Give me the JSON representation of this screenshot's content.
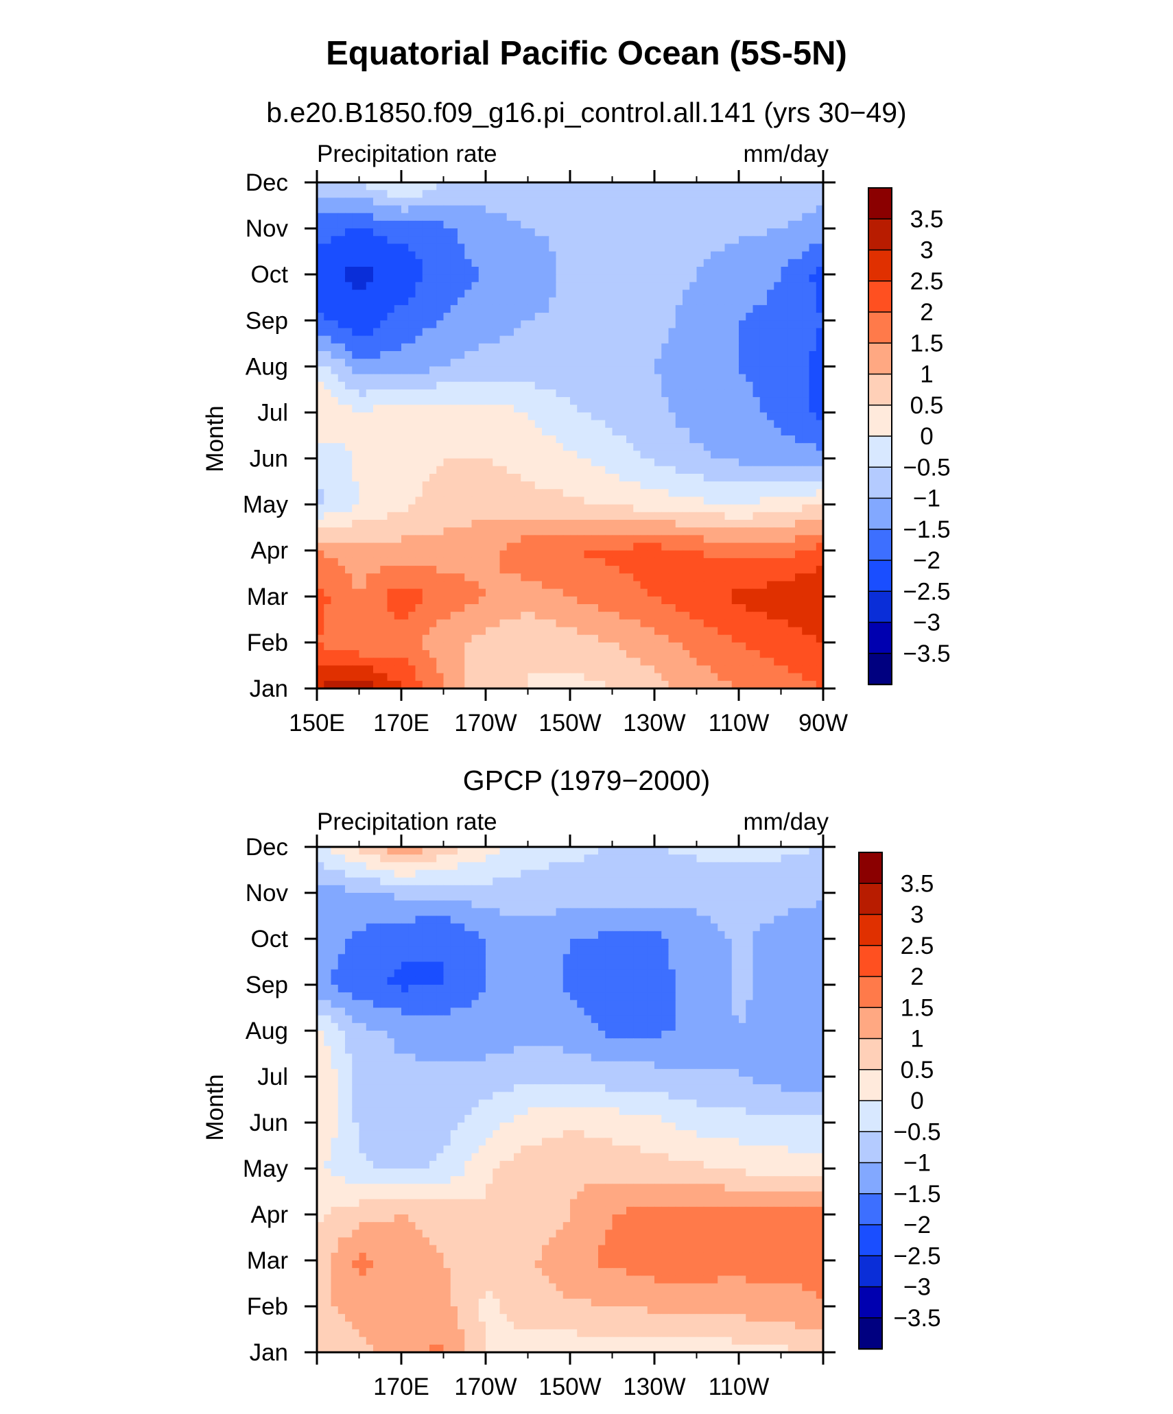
{
  "chart_data": {
    "title": "Equatorial Pacific Ocean (5S-5N)",
    "colorbar": {
      "levels": [
        -3.5,
        -3,
        -2.5,
        -2,
        -1.5,
        -1,
        -0.5,
        0,
        0.5,
        1,
        1.5,
        2,
        2.5,
        3,
        3.5
      ],
      "labels": [
        "3.5",
        "3",
        "2.5",
        "2",
        "1.5",
        "1",
        "0.5",
        "0",
        "−0.5",
        "−1",
        "−1.5",
        "−2",
        "−2.5",
        "−3",
        "−3.5"
      ],
      "colors": [
        "#000080",
        "#0000b0",
        "#0a2ed8",
        "#1a4eff",
        "#3d6fff",
        "#82a8ff",
        "#b4cbff",
        "#d8e8ff",
        "#ffeadc",
        "#ffd0b8",
        "#ffa882",
        "#ff7a4a",
        "#ff5020",
        "#e03000",
        "#b81c00",
        "#8b0000"
      ]
    },
    "panels": [
      {
        "type": "heatmap",
        "subtitle": "b.e20.B1850.f09_g16.pi_control.all.141 (yrs 30−49)",
        "left_label": "Precipitation rate",
        "right_label": "mm/day",
        "ylabel": "Month",
        "xlabel": "",
        "x_tick_labels": [
          "150E",
          "170E",
          "170W",
          "150W",
          "130W",
          "110W",
          "90W"
        ],
        "y_tick_labels": [
          "Jan",
          "Feb",
          "Mar",
          "Apr",
          "May",
          "Jun",
          "Jul",
          "Aug",
          "Sep",
          "Oct",
          "Nov",
          "Dec"
        ],
        "x": [
          150,
          160,
          170,
          180,
          190,
          200,
          210,
          220,
          230,
          240,
          250,
          260,
          270
        ],
        "y": [
          1,
          2,
          3,
          4,
          5,
          6,
          7,
          8,
          9,
          10,
          11,
          12
        ],
        "z": [
          [
            3.0,
            3.5,
            2.5,
            1.5,
            0.5,
            0.5,
            0.3,
            0.5,
            0.8,
            1.2,
            1.5,
            1.8,
            2.0
          ],
          [
            2.0,
            1.5,
            1.8,
            1.2,
            0.8,
            0.5,
            0.8,
            1.0,
            1.3,
            1.7,
            2.0,
            2.2,
            2.5
          ],
          [
            2.2,
            1.5,
            2.3,
            1.8,
            1.5,
            1.3,
            1.5,
            1.8,
            2.0,
            2.3,
            2.6,
            2.8,
            3.0
          ],
          [
            1.5,
            1.3,
            1.2,
            1.2,
            1.4,
            1.8,
            2.0,
            2.1,
            2.2,
            2.0,
            1.8,
            1.8,
            2.2
          ],
          [
            -0.6,
            0.0,
            0.4,
            0.7,
            0.8,
            0.7,
            0.6,
            0.4,
            0.3,
            0.1,
            0.0,
            0.2,
            0.5
          ],
          [
            -0.4,
            0.1,
            0.3,
            0.5,
            0.5,
            0.3,
            0.1,
            -0.2,
            -0.6,
            -0.9,
            -1.1,
            -1.3,
            -1.3
          ],
          [
            0.6,
            0.0,
            0.3,
            0.3,
            0.2,
            0.0,
            -0.4,
            -0.7,
            -0.9,
            -1.2,
            -1.4,
            -1.6,
            -2.2
          ],
          [
            -0.3,
            -1.3,
            -1.3,
            -1.0,
            -0.8,
            -0.8,
            -0.8,
            -0.9,
            -1.0,
            -1.3,
            -1.5,
            -1.6,
            -2.2
          ],
          [
            -1.9,
            -2.4,
            -1.8,
            -1.5,
            -1.2,
            -1.0,
            -0.9,
            -0.8,
            -0.8,
            -1.2,
            -1.5,
            -1.6,
            -2.0
          ],
          [
            -2.4,
            -2.6,
            -2.4,
            -1.7,
            -1.5,
            -1.3,
            -0.9,
            -0.8,
            -0.8,
            -1.0,
            -1.3,
            -1.5,
            -2.2
          ],
          [
            -1.8,
            -2.0,
            -1.8,
            -1.6,
            -1.2,
            -1.0,
            -0.9,
            -0.8,
            -0.8,
            -0.8,
            -0.9,
            -1.0,
            -1.2
          ],
          [
            -0.7,
            -0.5,
            0.2,
            -0.5,
            -0.7,
            -0.7,
            -0.8,
            -0.8,
            -0.8,
            -0.8,
            -0.8,
            -0.5,
            -0.8
          ]
        ]
      },
      {
        "type": "heatmap",
        "subtitle": "GPCP (1979−2000)",
        "left_label": "Precipitation rate",
        "right_label": "mm/day",
        "ylabel": "Month",
        "xlabel": "",
        "x_tick_labels": [
          "",
          "170E",
          "170W",
          "150W",
          "130W",
          "110W",
          ""
        ],
        "y_tick_labels": [
          "Jan",
          "Feb",
          "Mar",
          "Apr",
          "May",
          "Jun",
          "Jul",
          "Aug",
          "Sep",
          "Oct",
          "Nov",
          "Dec"
        ],
        "x": [
          150,
          160,
          170,
          180,
          190,
          200,
          210,
          220,
          230,
          240,
          250,
          260,
          270
        ],
        "y": [
          1,
          2,
          3,
          4,
          5,
          6,
          7,
          8,
          9,
          10,
          11,
          12
        ],
        "z": [
          [
            0.6,
            0.8,
            1.3,
            1.6,
            0.5,
            0.3,
            0.2,
            0.2,
            0.1,
            0.2,
            0.3,
            0.4,
            0.6
          ],
          [
            0.8,
            1.3,
            1.3,
            1.2,
            0.4,
            0.7,
            0.9,
            1.0,
            1.1,
            1.1,
            1.2,
            1.3,
            1.5
          ],
          [
            0.8,
            1.6,
            1.3,
            1.0,
            0.6,
            0.9,
            1.4,
            1.6,
            1.8,
            1.8,
            1.7,
            1.7,
            1.6
          ],
          [
            0.4,
            0.8,
            1.0,
            0.8,
            0.6,
            0.6,
            1.0,
            1.5,
            1.7,
            1.8,
            1.7,
            1.9,
            1.6
          ],
          [
            0.1,
            -0.4,
            -0.6,
            -0.4,
            0.4,
            0.8,
            0.9,
            0.8,
            0.7,
            0.6,
            0.4,
            0.3,
            0.2
          ],
          [
            0.5,
            -0.6,
            -0.9,
            -0.7,
            -0.2,
            0.2,
            0.4,
            0.3,
            0.1,
            -0.2,
            -0.3,
            -0.4,
            -0.4
          ],
          [
            0.6,
            -0.7,
            -0.9,
            -0.9,
            -0.8,
            -0.6,
            -0.6,
            -0.8,
            -0.8,
            -0.9,
            -1.0,
            -1.2,
            -1.3
          ],
          [
            0.1,
            -0.9,
            -1.1,
            -1.2,
            -1.3,
            -1.2,
            -1.3,
            -1.6,
            -1.6,
            -1.4,
            -1.0,
            -1.2,
            -1.0
          ],
          [
            -1.4,
            -1.8,
            -2.1,
            -2.0,
            -1.5,
            -1.1,
            -1.6,
            -1.7,
            -1.6,
            -1.4,
            -0.9,
            -1.2,
            -1.3
          ],
          [
            -1.2,
            -1.6,
            -1.9,
            -2.0,
            -1.5,
            -1.2,
            -1.5,
            -1.6,
            -1.6,
            -1.3,
            -0.9,
            -1.2,
            -1.4
          ],
          [
            -1.2,
            -1.1,
            -0.9,
            -0.9,
            -0.7,
            -0.7,
            -0.7,
            -0.8,
            -0.8,
            -0.8,
            -0.8,
            -0.8,
            -0.9
          ],
          [
            -0.2,
            0.6,
            1.5,
            0.8,
            0.2,
            -0.3,
            -0.4,
            -0.5,
            -0.5,
            -0.4,
            -0.4,
            -0.4,
            -0.5
          ]
        ]
      }
    ]
  }
}
